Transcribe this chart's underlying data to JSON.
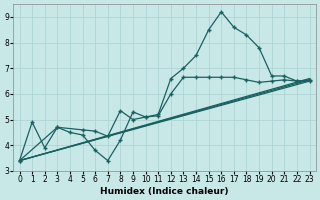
{
  "xlabel": "Humidex (Indice chaleur)",
  "background_color": "#c8e8e8",
  "grid_color": "#aed4d4",
  "line_color": "#1a6060",
  "xlim": [
    -0.5,
    23.5
  ],
  "ylim": [
    3.0,
    9.5
  ],
  "yticks": [
    3,
    4,
    5,
    6,
    7,
    8,
    9
  ],
  "xticks": [
    0,
    1,
    2,
    3,
    4,
    5,
    6,
    7,
    8,
    9,
    10,
    11,
    12,
    13,
    14,
    15,
    16,
    17,
    18,
    19,
    20,
    21,
    22,
    23
  ],
  "curve1_x": [
    0,
    1,
    2,
    3,
    4,
    5,
    6,
    7,
    8,
    9,
    10,
    11,
    12,
    13,
    14,
    15,
    16,
    17,
    18,
    19,
    20,
    21,
    22,
    23
  ],
  "curve1_y": [
    3.4,
    4.9,
    3.9,
    4.7,
    4.5,
    4.4,
    3.8,
    3.4,
    4.2,
    5.3,
    5.1,
    5.2,
    6.6,
    7.0,
    7.5,
    8.5,
    9.2,
    8.6,
    8.3,
    7.8,
    6.7,
    6.7,
    6.5,
    6.55
  ],
  "curve2_x": [
    0,
    3,
    5,
    6,
    7,
    8,
    9,
    10,
    11,
    12,
    13,
    14,
    15,
    16,
    17,
    18,
    19,
    20,
    21,
    22,
    23
  ],
  "curve2_y": [
    3.4,
    4.7,
    4.6,
    4.55,
    4.35,
    5.35,
    5.0,
    5.1,
    5.15,
    6.0,
    6.65,
    6.65,
    6.65,
    6.65,
    6.65,
    6.55,
    6.45,
    6.5,
    6.55,
    6.5,
    6.5
  ],
  "line1_x": [
    0,
    23
  ],
  "line1_y": [
    3.4,
    6.5
  ],
  "line2_x": [
    0,
    23
  ],
  "line2_y": [
    3.4,
    6.55
  ],
  "line3_x": [
    0,
    23
  ],
  "line3_y": [
    3.4,
    6.6
  ]
}
